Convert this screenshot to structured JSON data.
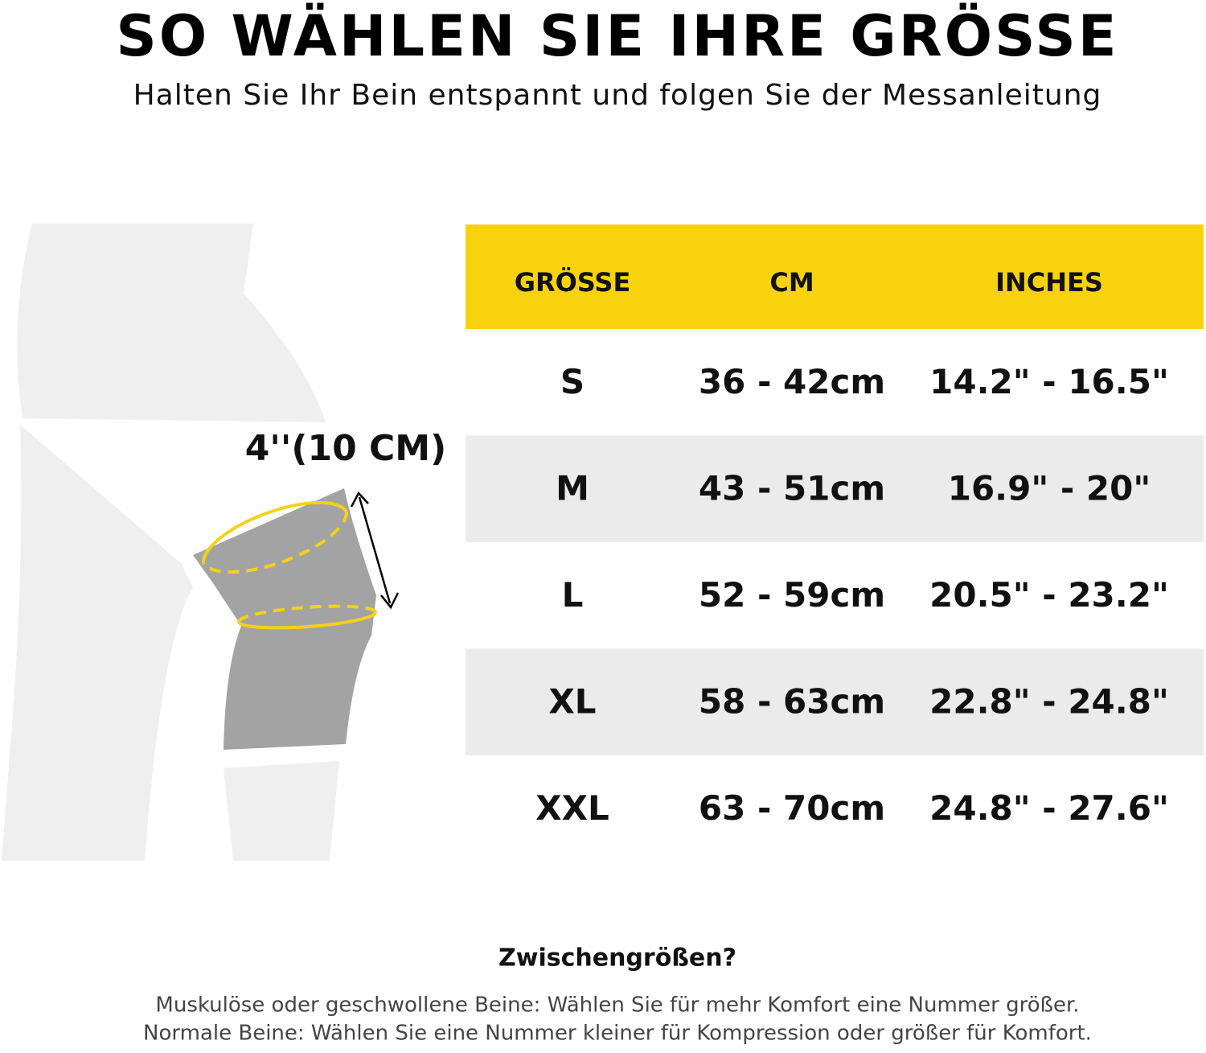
{
  "header": {
    "title": "SO WÄHLEN SIE IHRE GRÖSSE",
    "subtitle": "Halten Sie Ihr Bein entspannt und folgen Sie der Messanleitung"
  },
  "illustration": {
    "label": "4''(10 CM)"
  },
  "table": {
    "columns": [
      "GRÖSSE",
      "CM",
      "INCHES"
    ],
    "rows": [
      [
        "S",
        "36 - 42cm",
        "14.2\" - 16.5\""
      ],
      [
        "M",
        "43 - 51cm",
        "16.9\" - 20\""
      ],
      [
        "L",
        "52 - 59cm",
        "20.5\" - 23.2\""
      ],
      [
        "XL",
        "58 - 63cm",
        "22.8\" - 24.8\""
      ],
      [
        "XXL",
        "63 - 70cm",
        "24.8\" - 27.6\""
      ]
    ]
  },
  "footer": {
    "heading": "Zwischengrößen?",
    "lines": [
      "Muskulöse oder geschwollene Beine: Wählen Sie für mehr Komfort eine Nummer größer.",
      "Normale Beine: Wählen Sie eine Nummer kleiner für Kompression oder größer für Komfort."
    ]
  }
}
